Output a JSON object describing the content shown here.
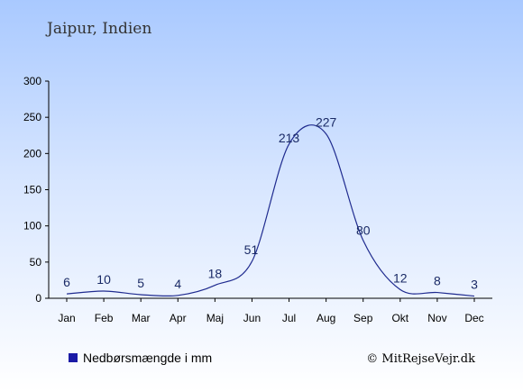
{
  "chart_data": {
    "type": "line",
    "title": "Jaipur, Indien",
    "categories": [
      "Jan",
      "Feb",
      "Mar",
      "Apr",
      "Maj",
      "Jun",
      "Jul",
      "Aug",
      "Sep",
      "Okt",
      "Nov",
      "Dec"
    ],
    "series": [
      {
        "name": "Nedbørsmængde i mm",
        "values": [
          6,
          10,
          5,
          4,
          18,
          51,
          213,
          227,
          80,
          12,
          8,
          3
        ]
      }
    ],
    "ylim": [
      0,
      300
    ],
    "yticks": [
      0,
      50,
      100,
      150,
      200,
      250,
      300
    ],
    "grid": false,
    "legend": "bottom-left",
    "line_color": "#1f2b8f",
    "legend_color": "#1a1aa6"
  },
  "credit": "© MitRejseVejr.dk"
}
